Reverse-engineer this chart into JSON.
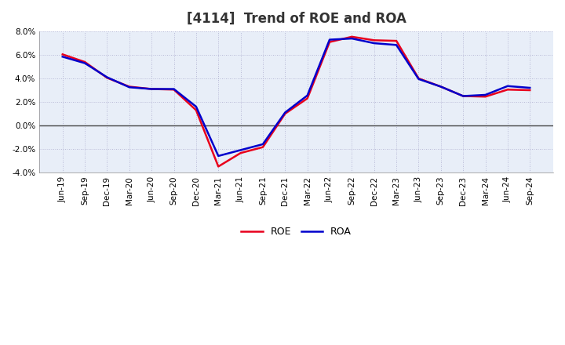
{
  "title": "[4114]  Trend of ROE and ROA",
  "labels": [
    "Jun-19",
    "Sep-19",
    "Dec-19",
    "Mar-20",
    "Jun-20",
    "Sep-20",
    "Dec-20",
    "Mar-21",
    "Jun-21",
    "Sep-21",
    "Dec-21",
    "Mar-22",
    "Jun-22",
    "Sep-22",
    "Dec-22",
    "Mar-23",
    "Jun-23",
    "Sep-23",
    "Dec-23",
    "Mar-24",
    "Jun-24",
    "Sep-24"
  ],
  "ROE": [
    6.05,
    5.4,
    4.05,
    3.3,
    3.1,
    3.05,
    1.3,
    -3.5,
    -2.35,
    -1.85,
    1.0,
    2.3,
    7.1,
    7.55,
    7.25,
    7.2,
    4.0,
    3.3,
    2.5,
    2.45,
    3.05,
    3.0
  ],
  "ROA": [
    5.85,
    5.3,
    4.1,
    3.25,
    3.1,
    3.1,
    1.6,
    -2.6,
    -2.1,
    -1.6,
    1.1,
    2.55,
    7.3,
    7.4,
    7.0,
    6.85,
    3.95,
    3.3,
    2.5,
    2.6,
    3.35,
    3.2
  ],
  "roe_color": "#e8001c",
  "roa_color": "#0000cc",
  "ylim": [
    -4.0,
    8.0
  ],
  "yticks": [
    -4.0,
    -2.0,
    0.0,
    2.0,
    4.0,
    6.0,
    8.0
  ],
  "background_color": "#ffffff",
  "plot_bg_color": "#e8eef8",
  "grid_color": "#aaaacc",
  "line_width": 1.8,
  "title_fontsize": 12,
  "tick_fontsize": 7.5,
  "legend_fontsize": 9
}
